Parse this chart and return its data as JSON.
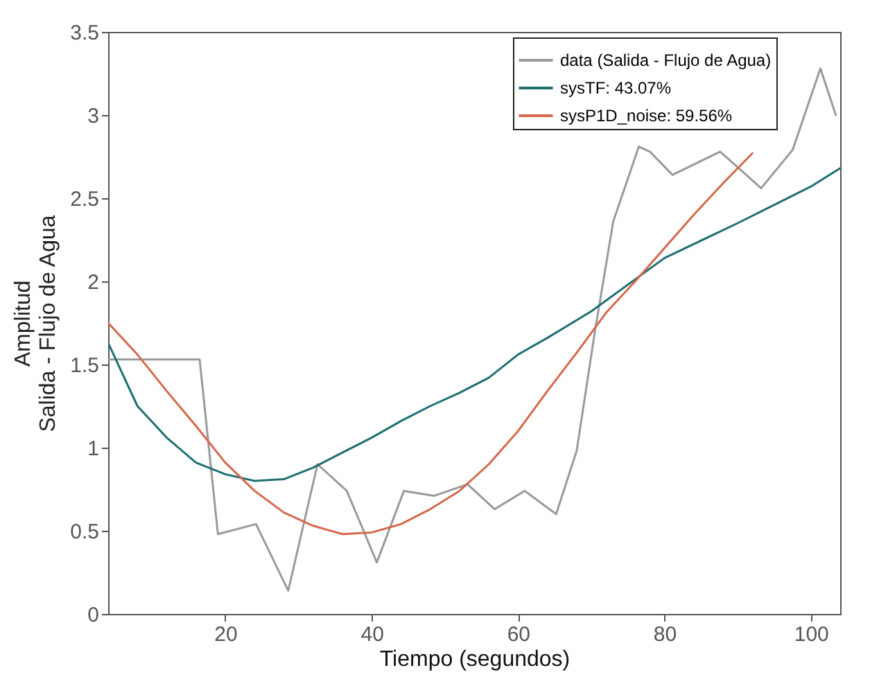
{
  "chart_data": {
    "type": "line",
    "xlabel": "Tiempo (segundos)",
    "ylabel": "Amplitud\nSalida - Flujo de Agua",
    "xlim": [
      4,
      104
    ],
    "xticks": [
      20,
      40,
      60,
      80,
      100
    ],
    "ylim": [
      0,
      3.5
    ],
    "yticks": [
      0,
      0.5,
      1,
      1.5,
      2,
      2.5,
      3,
      3.5
    ],
    "grid": false,
    "legend": "top right",
    "marker": "none",
    "line_style": "solid",
    "series": [
      {
        "name": "data (Salida - Flujo de Agua)",
        "color": "#9a9a9a",
        "x": [
          4,
          16.5,
          19,
          24.2,
          28.6,
          32.6,
          36.6,
          40.7,
          44.4,
          48.5,
          53.1,
          56.8,
          60.9,
          65.2,
          68,
          70.5,
          73,
          76.5,
          78,
          81.1,
          87.6,
          93.2,
          97.5,
          101.3,
          103.4
        ],
        "values": [
          1.53,
          1.53,
          0.48,
          0.54,
          0.14,
          0.9,
          0.74,
          0.31,
          0.74,
          0.71,
          0.78,
          0.63,
          0.74,
          0.6,
          0.98,
          1.7,
          2.36,
          2.81,
          2.78,
          2.64,
          2.78,
          2.56,
          2.79,
          3.28,
          3.0
        ]
      },
      {
        "name": "sysTF: 43.07%",
        "color": "#1f6f70",
        "x": [
          4,
          8,
          12,
          16,
          20,
          24,
          28,
          32,
          36,
          40,
          44,
          48,
          52,
          56,
          60,
          64,
          70,
          80,
          90,
          95,
          100,
          104
        ],
        "values": [
          1.63,
          1.25,
          1.06,
          0.91,
          0.84,
          0.8,
          0.81,
          0.88,
          0.97,
          1.06,
          1.16,
          1.25,
          1.33,
          1.42,
          1.56,
          1.66,
          1.82,
          2.14,
          2.35,
          2.46,
          2.57,
          2.68
        ]
      },
      {
        "name": "sysP1D_noise:  59.56%",
        "color": "#d4694c",
        "x": [
          4,
          8,
          12,
          16,
          20,
          24,
          28,
          32,
          36,
          40,
          44,
          48,
          52,
          56,
          60,
          64,
          68,
          72,
          76,
          80,
          84,
          88,
          92
        ],
        "values": [
          1.75,
          1.56,
          1.34,
          1.13,
          0.91,
          0.74,
          0.61,
          0.53,
          0.48,
          0.49,
          0.54,
          0.63,
          0.74,
          0.9,
          1.1,
          1.34,
          1.57,
          1.81,
          2.0,
          2.2,
          2.4,
          2.59,
          2.77
        ]
      }
    ]
  }
}
